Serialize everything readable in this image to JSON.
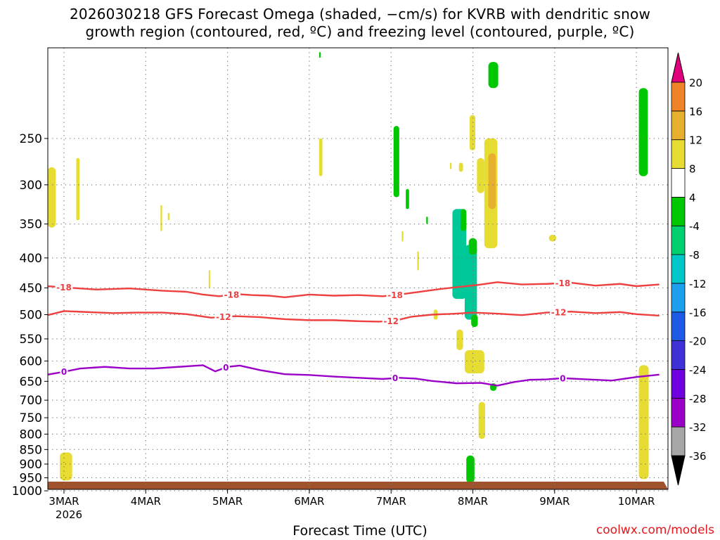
{
  "title_line1": "2026030218 GFS Forecast Omega (shaded, −cm/s) for KVRB with dendritic snow",
  "title_line2": "growth region (contoured, red, ºC) and freezing level (contoured, purple, ºC)",
  "xlabel": "Forecast Time (UTC)",
  "credit": "coolwx.com/models",
  "colors": {
    "temp_contour": "#ee4040",
    "freezing_contour": "#9b00c8",
    "ground": "#a0522d",
    "grid": "#777777"
  },
  "chart_data": {
    "type": "heatmap",
    "x_ticks": [
      {
        "label": "3MAR",
        "sub": "2026",
        "day": 0
      },
      {
        "label": "4MAR",
        "day": 1
      },
      {
        "label": "5MAR",
        "day": 2
      },
      {
        "label": "6MAR",
        "day": 3
      },
      {
        "label": "7MAR",
        "day": 4
      },
      {
        "label": "8MAR",
        "day": 5
      },
      {
        "label": "9MAR",
        "day": 6
      },
      {
        "label": "10MAR",
        "day": 7
      }
    ],
    "x_range": [
      -0.2,
      7.28
    ],
    "y_axis": {
      "scale": "log",
      "range": [
        1025,
        175
      ],
      "ticks": [
        250,
        300,
        350,
        400,
        450,
        500,
        550,
        600,
        650,
        700,
        750,
        800,
        850,
        900,
        950,
        1000
      ]
    },
    "colorbar": {
      "levels": [
        -36,
        -32,
        -28,
        -24,
        -20,
        -16,
        -12,
        -8,
        -4,
        4,
        8,
        12,
        16,
        20
      ],
      "colors": [
        "#a6a6a6",
        "#9a00c8",
        "#7000e0",
        "#4030d8",
        "#1e5ae6",
        "#1ea0f0",
        "#00c8c8",
        "#00d070",
        "#00c800",
        "#ffffff",
        "#e6dc32",
        "#e6af2d",
        "#f08228",
        "#f04040",
        "#e0007c"
      ],
      "extend_low_color": "#000000",
      "extend_high_color": "#e0007c"
    },
    "omega_regions": [
      {
        "color": "#e6dc32",
        "t0": -0.2,
        "t1": -0.1,
        "p0": 280,
        "p1": 355
      },
      {
        "color": "#e6dc32",
        "t0": 0.15,
        "t1": 0.19,
        "p0": 270,
        "p1": 345
      },
      {
        "color": "#e6dc32",
        "t0": -0.05,
        "t1": 0.1,
        "p0": 860,
        "p1": 960
      },
      {
        "color": "#e6dc32",
        "t0": 1.18,
        "t1": 1.2,
        "p0": 325,
        "p1": 360
      },
      {
        "color": "#e6dc32",
        "t0": 1.27,
        "t1": 1.29,
        "p0": 335,
        "p1": 345
      },
      {
        "color": "#e6dc32",
        "t0": 1.77,
        "t1": 1.78,
        "p0": 420,
        "p1": 450
      },
      {
        "color": "#e6dc32",
        "t0": 3.12,
        "t1": 3.16,
        "p0": 250,
        "p1": 290
      },
      {
        "color": "#00c800",
        "t0": 3.12,
        "t1": 3.14,
        "p0": 178,
        "p1": 182
      },
      {
        "color": "#00c800",
        "t0": 4.03,
        "t1": 4.1,
        "p0": 238,
        "p1": 315
      },
      {
        "color": "#00c800",
        "t0": 4.18,
        "t1": 4.22,
        "p0": 305,
        "p1": 330
      },
      {
        "color": "#e6dc32",
        "t0": 4.13,
        "t1": 4.15,
        "p0": 360,
        "p1": 375
      },
      {
        "color": "#00c800",
        "t0": 4.43,
        "t1": 4.45,
        "p0": 340,
        "p1": 350
      },
      {
        "color": "#e6dc32",
        "t0": 4.32,
        "t1": 4.34,
        "p0": 390,
        "p1": 420
      },
      {
        "color": "#e6dc32",
        "t0": 4.52,
        "t1": 4.57,
        "p0": 490,
        "p1": 510
      },
      {
        "color": "#e6dc32",
        "t0": 4.72,
        "t1": 4.74,
        "p0": 275,
        "p1": 282
      },
      {
        "color": "#e6dc32",
        "t0": 4.83,
        "t1": 4.88,
        "p0": 275,
        "p1": 285
      },
      {
        "color": "#00c898",
        "t0": 4.75,
        "t1": 4.92,
        "p0": 330,
        "p1": 470
      },
      {
        "color": "#00c800",
        "t0": 4.85,
        "t1": 4.92,
        "p0": 330,
        "p1": 360
      },
      {
        "color": "#00c898",
        "t0": 4.9,
        "t1": 5.05,
        "p0": 380,
        "p1": 510
      },
      {
        "color": "#00c800",
        "t0": 4.95,
        "t1": 5.05,
        "p0": 370,
        "p1": 395
      },
      {
        "color": "#00c800",
        "t0": 4.98,
        "t1": 5.06,
        "p0": 500,
        "p1": 525
      },
      {
        "color": "#e6dc32",
        "t0": 4.96,
        "t1": 5.03,
        "p0": 228,
        "p1": 262
      },
      {
        "color": "#e6dc32",
        "t0": 4.8,
        "t1": 4.88,
        "p0": 530,
        "p1": 575
      },
      {
        "color": "#e6dc32",
        "t0": 4.9,
        "t1": 5.14,
        "p0": 575,
        "p1": 630
      },
      {
        "color": "#e6dc32",
        "t0": 5.05,
        "t1": 5.14,
        "p0": 270,
        "p1": 310
      },
      {
        "color": "#e6dc32",
        "t0": 5.14,
        "t1": 5.3,
        "p0": 250,
        "p1": 385
      },
      {
        "color": "#e6af2d",
        "t0": 5.19,
        "t1": 5.28,
        "p0": 265,
        "p1": 330
      },
      {
        "color": "#00c800",
        "t0": 5.19,
        "t1": 5.31,
        "p0": 185,
        "p1": 205
      },
      {
        "color": "#00c800",
        "t0": 5.21,
        "t1": 5.29,
        "p0": 655,
        "p1": 675
      },
      {
        "color": "#e6dc32",
        "t0": 5.07,
        "t1": 5.15,
        "p0": 705,
        "p1": 815
      },
      {
        "color": "#00c800",
        "t0": 4.92,
        "t1": 5.02,
        "p0": 870,
        "p1": 970
      },
      {
        "color": "#e6dc32",
        "t0": 5.93,
        "t1": 6.02,
        "p0": 365,
        "p1": 375
      },
      {
        "color": "#00c800",
        "t0": 7.03,
        "t1": 7.14,
        "p0": 205,
        "p1": 290
      },
      {
        "color": "#e6dc32",
        "t0": 7.03,
        "t1": 7.15,
        "p0": 610,
        "p1": 955
      }
    ],
    "contours": [
      {
        "name": "dgz-top",
        "value": -18,
        "label": "-18",
        "color": "#ee4040",
        "t": [
          -0.2,
          0.1,
          0.4,
          0.8,
          1.2,
          1.5,
          1.7,
          1.9,
          2.1,
          2.3,
          2.5,
          2.7,
          3.0,
          3.3,
          3.6,
          3.9,
          4.1,
          4.3,
          4.6,
          4.85,
          5.05,
          5.3,
          5.6,
          5.9,
          6.2,
          6.5,
          6.8,
          7.0,
          7.28
        ],
        "p": [
          447,
          450,
          453,
          451,
          455,
          457,
          462,
          465,
          461,
          463,
          464,
          467,
          462,
          464,
          463,
          465,
          462,
          458,
          452,
          448,
          445,
          440,
          444,
          443,
          441,
          446,
          443,
          447,
          444
        ],
        "labels_at": [
          0.0,
          2.05,
          4.05,
          6.1
        ]
      },
      {
        "name": "dgz-bottom",
        "value": -12,
        "label": "-12",
        "color": "#ee4040",
        "t": [
          -0.2,
          0.0,
          0.3,
          0.6,
          0.9,
          1.2,
          1.5,
          1.8,
          2.1,
          2.4,
          2.7,
          3.0,
          3.3,
          3.6,
          3.85,
          4.05,
          4.25,
          4.5,
          4.8,
          5.0,
          5.3,
          5.6,
          5.9,
          6.2,
          6.5,
          6.8,
          7.0,
          7.28
        ],
        "p": [
          501,
          493,
          495,
          497,
          496,
          496,
          499,
          506,
          503,
          505,
          509,
          511,
          511,
          513,
          514,
          512,
          504,
          500,
          498,
          496,
          498,
          501,
          496,
          494,
          497,
          495,
          499,
          502
        ],
        "labels_at": [
          1.95,
          4.0,
          6.05
        ]
      },
      {
        "name": "freezing-level",
        "value": 0,
        "label": "0",
        "color": "#9b00c8",
        "t": [
          -0.2,
          0.0,
          0.2,
          0.5,
          0.8,
          1.1,
          1.4,
          1.7,
          1.85,
          2.0,
          2.15,
          2.4,
          2.7,
          3.0,
          3.3,
          3.6,
          3.9,
          4.1,
          4.3,
          4.5,
          4.8,
          5.1,
          5.3,
          5.5,
          5.7,
          5.9,
          6.1,
          6.4,
          6.7,
          7.0,
          7.28
        ],
        "p": [
          633,
          626,
          618,
          614,
          618,
          618,
          614,
          610,
          625,
          614,
          611,
          622,
          632,
          634,
          638,
          641,
          644,
          641,
          643,
          649,
          655,
          654,
          661,
          652,
          646,
          645,
          642,
          645,
          648,
          639,
          633
        ],
        "labels_at": [
          0.0,
          1.98,
          4.05,
          6.1
        ]
      }
    ]
  }
}
